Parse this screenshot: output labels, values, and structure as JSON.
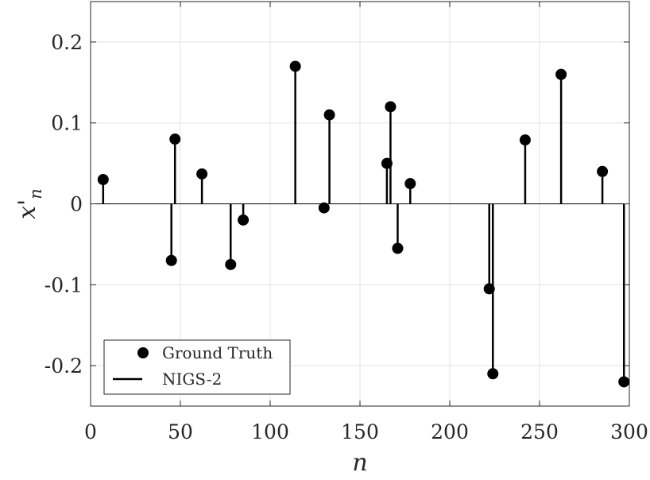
{
  "chart_data": {
    "type": "stem",
    "title": "",
    "xlabel": "n",
    "ylabel": "x'_n",
    "xlim": [
      0,
      300
    ],
    "ylim": [
      -0.25,
      0.25
    ],
    "xticks": [
      0,
      50,
      100,
      150,
      200,
      250,
      300
    ],
    "yticks": [
      0.2,
      0.1,
      0,
      -0.1,
      -0.2
    ],
    "xtick_labels": [
      "0",
      "50",
      "100",
      "150",
      "200",
      "250",
      "300"
    ],
    "ytick_labels": [
      "0.2",
      "0.1",
      "0",
      "-0.1",
      "-0.2"
    ],
    "grid": true,
    "legend_position": "bottom-left",
    "series": [
      {
        "name": "Ground Truth",
        "marker": "filled-circle",
        "color": "#000000",
        "x": [
          7,
          45,
          47,
          62,
          78,
          85,
          114,
          130,
          133,
          165,
          167,
          171,
          178,
          222,
          224,
          242,
          262,
          285,
          297
        ],
        "y": [
          0.03,
          -0.07,
          0.08,
          0.037,
          -0.075,
          -0.02,
          0.17,
          -0.005,
          0.11,
          0.05,
          0.12,
          -0.055,
          0.025,
          -0.105,
          -0.21,
          0.079,
          0.16,
          0.04,
          -0.22
        ]
      },
      {
        "name": "NIGS-2",
        "marker": "line",
        "color": "#000000",
        "x": [
          7,
          45,
          47,
          62,
          78,
          85,
          114,
          130,
          133,
          165,
          167,
          171,
          178,
          222,
          224,
          242,
          262,
          285,
          297
        ],
        "y": [
          0.03,
          -0.07,
          0.08,
          0.037,
          -0.075,
          -0.02,
          0.17,
          -0.005,
          0.11,
          0.05,
          0.12,
          -0.055,
          0.025,
          -0.105,
          -0.21,
          0.079,
          0.16,
          0.04,
          -0.22
        ]
      }
    ]
  }
}
